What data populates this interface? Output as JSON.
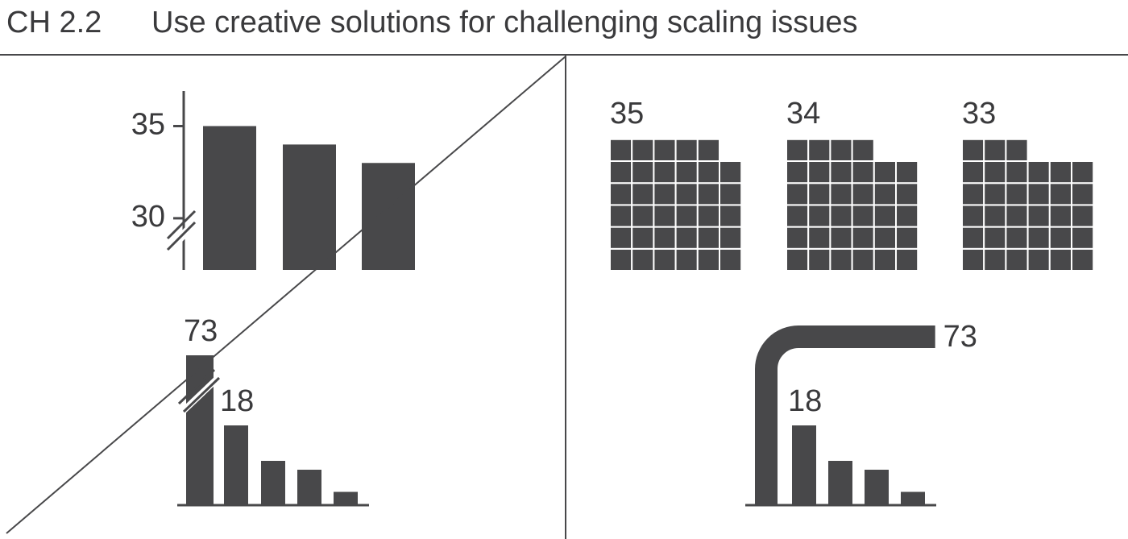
{
  "header": {
    "chapter": "CH 2.2",
    "title": "Use creative solutions for challenging scaling issues"
  },
  "chart_data": [
    {
      "type": "bar",
      "categories": [
        null,
        null,
        null
      ],
      "values": [
        35,
        34,
        33
      ],
      "ylim": [
        27.2,
        36.9
      ],
      "yticks": [
        30,
        35
      ],
      "axis_break": true,
      "color": "#48484a"
    },
    {
      "type": "bar",
      "categories": [
        null,
        null,
        null,
        null,
        null
      ],
      "values": [
        73,
        18,
        10,
        8,
        3
      ],
      "value_labels": [
        "73",
        "18",
        null,
        null,
        null
      ],
      "bar_break": true,
      "color": "#48484a"
    },
    {
      "type": "waffle",
      "values": [
        35,
        34,
        33
      ],
      "cells_per_row": 6,
      "color": "#48484a"
    },
    {
      "type": "bar",
      "categories": [
        null,
        null,
        null,
        null,
        null
      ],
      "values": [
        73,
        18,
        10,
        8,
        3
      ],
      "value_labels": [
        "73",
        "18",
        null,
        null,
        null
      ],
      "bent_bar": true,
      "color": "#48484a"
    }
  ]
}
